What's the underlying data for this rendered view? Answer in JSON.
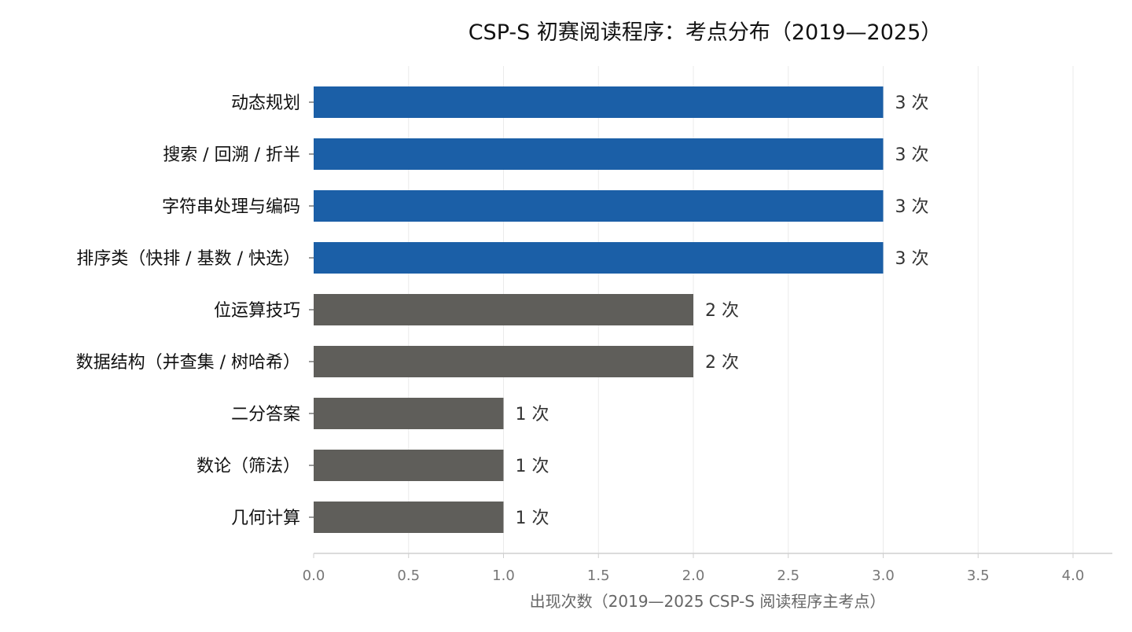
{
  "chart_data": {
    "type": "bar",
    "orientation": "horizontal",
    "title": "CSP-S 初赛阅读程序：考点分布（2019—2025）",
    "xlabel": "出现次数（2019—2025 CSP-S 阅读程序主考点）",
    "ylabel": "",
    "categories": [
      "动态规划",
      "搜索 / 回溯 / 折半",
      "字符串处理与编码",
      "排序类（快排 / 基数 / 快选）",
      "位运算技巧",
      "数据结构（并查集 / 树哈希）",
      "二分答案",
      "数论（筛法）",
      "几何计算"
    ],
    "values": [
      3,
      3,
      3,
      3,
      2,
      2,
      1,
      1,
      1
    ],
    "data_labels": [
      "3 次",
      "3 次",
      "3 次",
      "3 次",
      "2 次",
      "2 次",
      "1 次",
      "1 次",
      "1 次"
    ],
    "xlim": [
      0,
      4.2
    ],
    "xticks": [
      0.0,
      0.5,
      1.0,
      1.5,
      2.0,
      2.5,
      3.0,
      3.5,
      4.0
    ],
    "xtick_labels": [
      "0.0",
      "0.5",
      "1.0",
      "1.5",
      "2.0",
      "2.5",
      "3.0",
      "3.5",
      "4.0"
    ],
    "grid": "vertical",
    "colors": {
      "highlight": "#1b5fa7",
      "default": "#5f5e5a",
      "grid": "#ebebeb",
      "axis": "#cfcfcf"
    },
    "highlight_threshold": 3
  }
}
